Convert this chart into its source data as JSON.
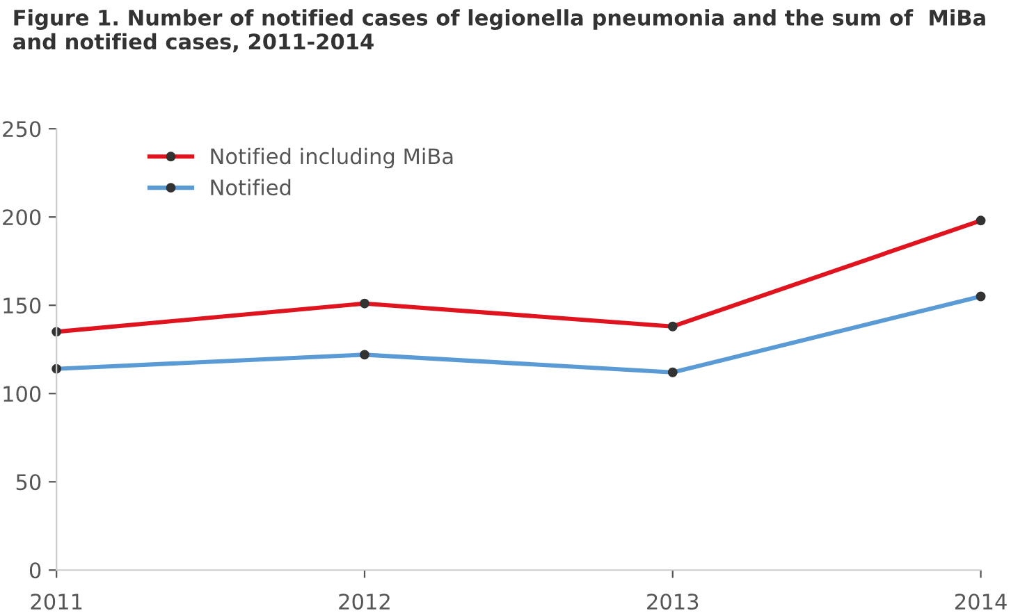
{
  "chart_data": {
    "type": "line",
    "title": "Figure 1. Number of notified cases of legionella pneumonia and the sum of  MiBa and notified cases, 2011-2014",
    "categories": [
      "2011",
      "2012",
      "2013",
      "2014"
    ],
    "series": [
      {
        "name": "Notified including MiBa",
        "color": "#e0141e",
        "values": [
          135,
          151,
          138,
          198
        ]
      },
      {
        "name": "Notified",
        "color": "#5b9bd5",
        "values": [
          114,
          122,
          112,
          155
        ]
      }
    ],
    "ylim": [
      0,
      250
    ],
    "yticks": [
      0,
      50,
      100,
      150,
      200,
      250
    ],
    "grid": false,
    "legend": "top left",
    "marker": "circle",
    "line_style": "solid"
  }
}
